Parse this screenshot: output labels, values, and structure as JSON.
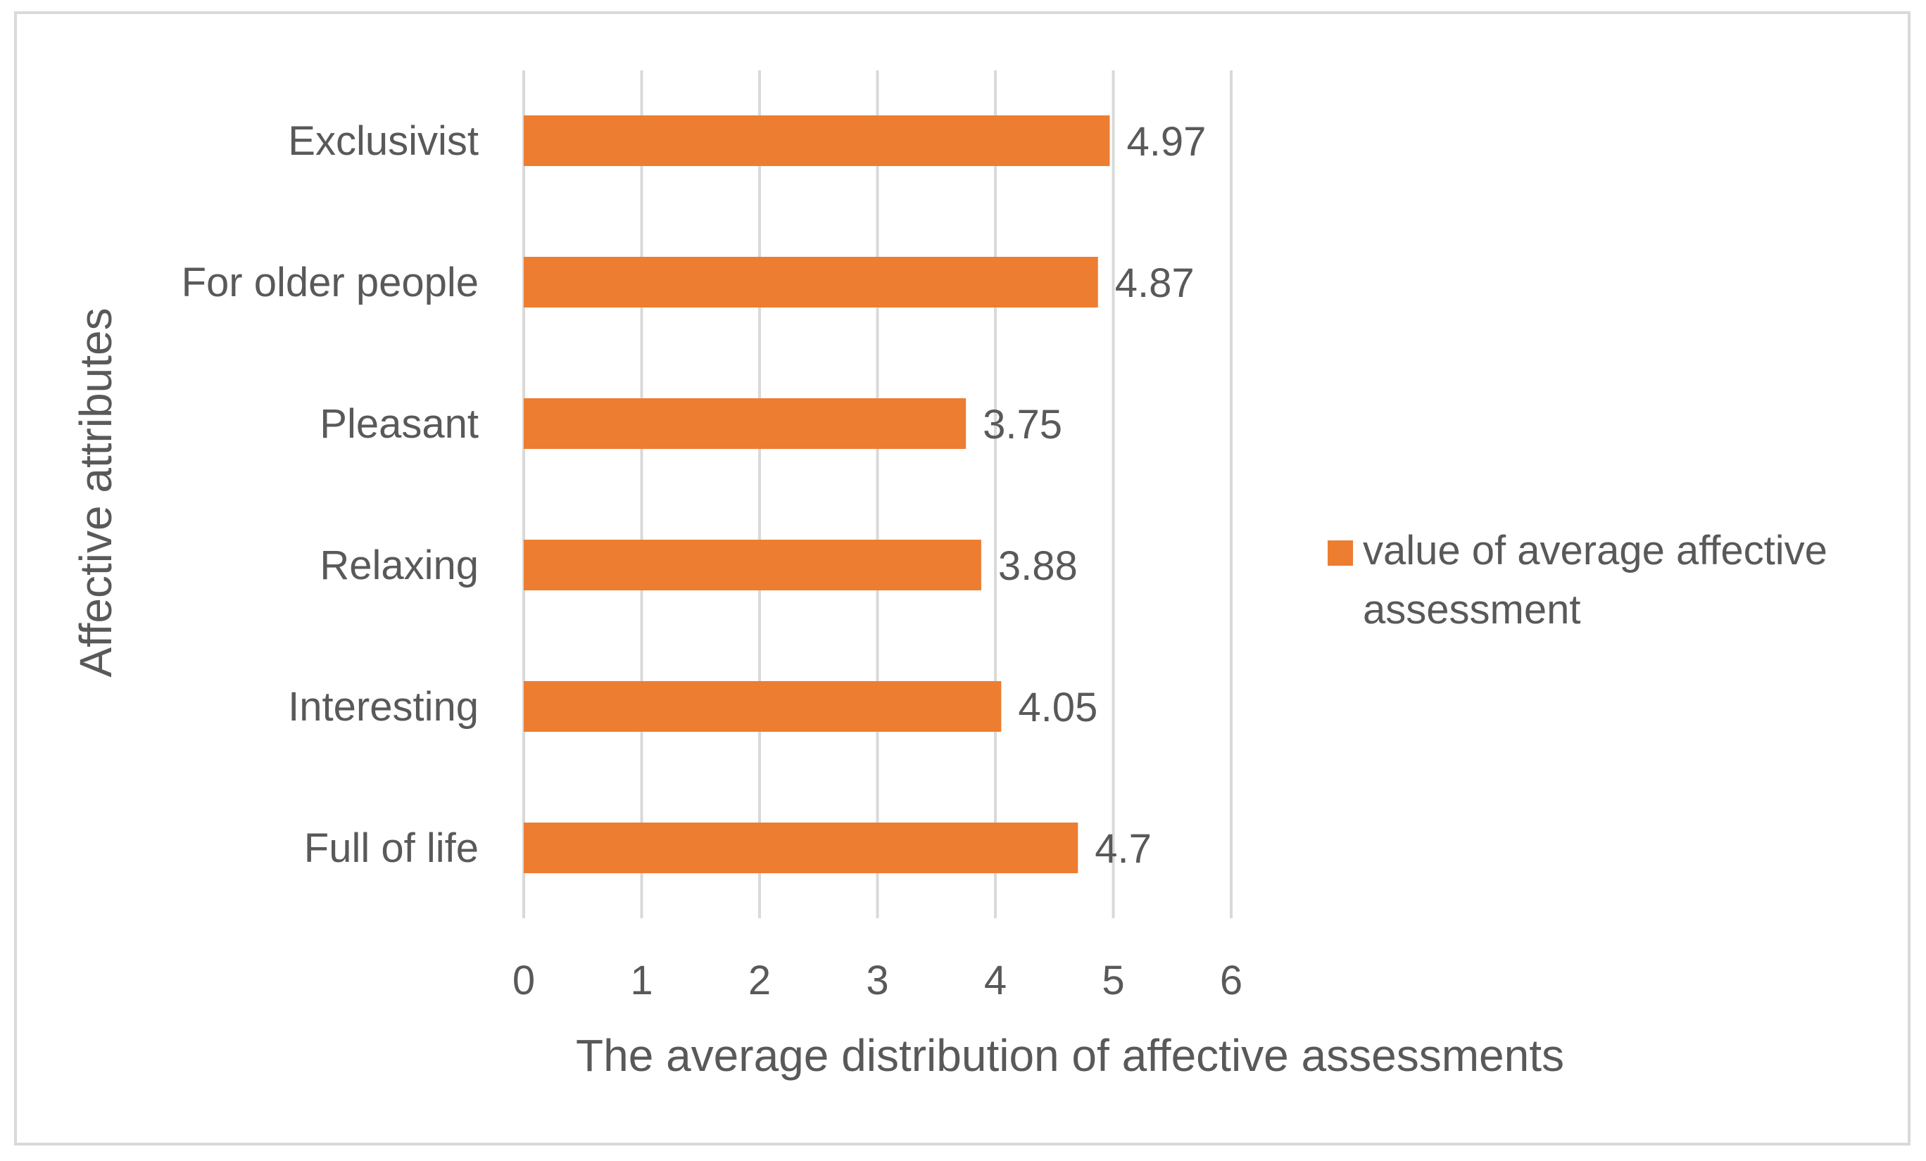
{
  "chart_data": {
    "type": "bar",
    "orientation": "horizontal",
    "title": "",
    "xlabel": "The average distribution of affective assessments",
    "ylabel": "Affective attributes",
    "categories": [
      "Exclusivist",
      "For older people",
      "Pleasant",
      "Relaxing",
      "Interesting",
      "Full of life"
    ],
    "series": [
      {
        "name": "value of average affective assessment",
        "values": [
          4.97,
          4.87,
          3.75,
          3.88,
          4.05,
          4.7
        ],
        "color": "#ed7d31"
      }
    ],
    "data_labels": [
      "4.97",
      "4.87",
      "3.75",
      "3.88",
      "4.05",
      "4.7"
    ],
    "xlim": [
      0,
      6
    ],
    "xticks": [
      0,
      1,
      2,
      3,
      4,
      5,
      6
    ],
    "grid": true,
    "legend_position": "right",
    "legend_lines": [
      "value of average affective",
      "assessment"
    ],
    "gridline_color": "#d9d9d9",
    "text_color": "#595959"
  }
}
